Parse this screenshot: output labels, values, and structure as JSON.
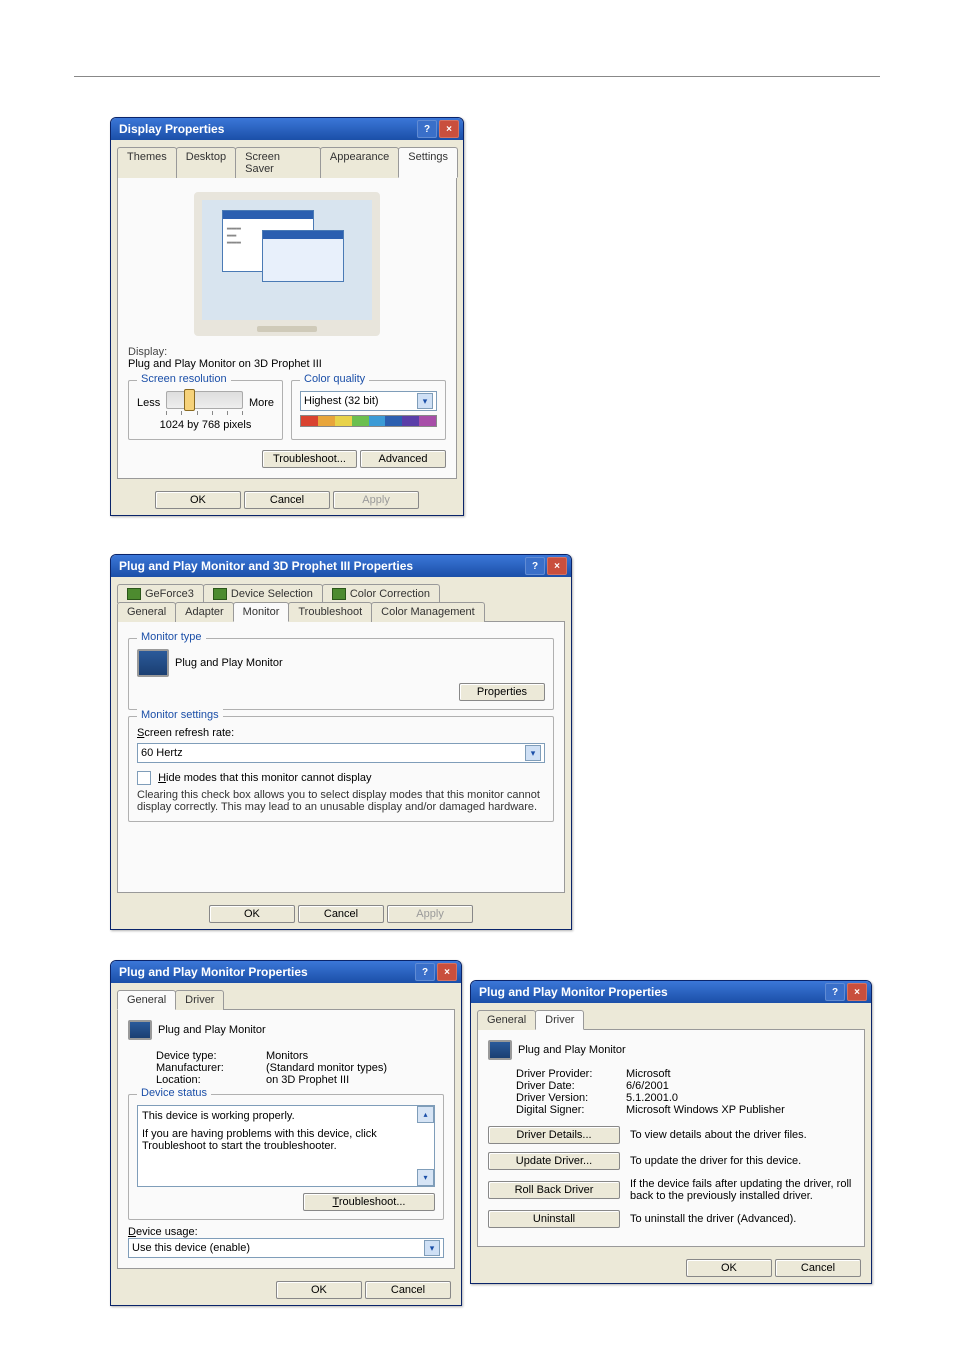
{
  "colors": {
    "titlebar_from": "#3b77d8",
    "titlebar_to": "#1b4fa8",
    "face": "#ece9d8",
    "border": "#7f9db9",
    "link": "#1b4fa8"
  },
  "rainbow": [
    "#d94330",
    "#e8a53b",
    "#e8d24a",
    "#6bbf4f",
    "#3b9bd6",
    "#2b5fb0",
    "#5a3ea8",
    "#a74ea8"
  ],
  "dlg1": {
    "title": "Display Properties",
    "tabs": [
      "Themes",
      "Desktop",
      "Screen Saver",
      "Appearance",
      "Settings"
    ],
    "active_tab": "Settings",
    "display_label": "Display:",
    "display_value": "Plug and Play Monitor on 3D Prophet III",
    "res_group": "Screen resolution",
    "res_less": "Less",
    "res_more": "More",
    "res_value": "1024 by 768 pixels",
    "cq_group": "Color quality",
    "cq_value": "Highest (32 bit)",
    "btn_ts": "Troubleshoot...",
    "btn_adv": "Advanced",
    "ok": "OK",
    "cancel": "Cancel",
    "apply": "Apply"
  },
  "dlg2": {
    "title": "Plug and Play Monitor and 3D Prophet III Properties",
    "tabs_top": [
      "GeForce3",
      "Device Selection",
      "Color Correction"
    ],
    "tabs_bot": [
      "General",
      "Adapter",
      "Monitor",
      "Troubleshoot",
      "Color Management"
    ],
    "active_tab": "Monitor",
    "mt_group": "Monitor type",
    "mt_name": "Plug and Play Monitor",
    "mt_props": "Properties",
    "ms_group": "Monitor settings",
    "refresh_label": "Screen refresh rate:",
    "refresh_value": "60 Hertz",
    "hide_label": "Hide modes that this monitor cannot display",
    "hide_desc": "Clearing this check box allows you to select display modes that this monitor cannot display correctly. This may lead to an unusable display and/or damaged hardware.",
    "ok": "OK",
    "cancel": "Cancel",
    "apply": "Apply"
  },
  "dlg3": {
    "title": "Plug and Play Monitor Properties",
    "tabs": [
      "General",
      "Driver"
    ],
    "active_tab": "General",
    "name": "Plug and Play Monitor",
    "rows": [
      {
        "k": "Device type:",
        "v": "Monitors"
      },
      {
        "k": "Manufacturer:",
        "v": "(Standard monitor types)"
      },
      {
        "k": "Location:",
        "v": "on 3D Prophet III"
      }
    ],
    "ds_group": "Device status",
    "ds_line1": "This device is working properly.",
    "ds_line2": "If you are having problems with this device, click Troubleshoot to start the troubleshooter.",
    "btn_ts": "Troubleshoot...",
    "usage_label": "Device usage:",
    "usage_value": "Use this device (enable)",
    "ok": "OK",
    "cancel": "Cancel"
  },
  "dlg4": {
    "title": "Plug and Play Monitor Properties",
    "tabs": [
      "General",
      "Driver"
    ],
    "active_tab": "Driver",
    "name": "Plug and Play Monitor",
    "rows": [
      {
        "k": "Driver Provider:",
        "v": "Microsoft"
      },
      {
        "k": "Driver Date:",
        "v": "6/6/2001"
      },
      {
        "k": "Driver Version:",
        "v": "5.1.2001.0"
      },
      {
        "k": "Digital Signer:",
        "v": "Microsoft Windows XP Publisher"
      }
    ],
    "buttons": [
      {
        "label": "Driver Details...",
        "desc": "To view details about the driver files."
      },
      {
        "label": "Update Driver...",
        "desc": "To update the driver for this device."
      },
      {
        "label": "Roll Back Driver",
        "desc": "If the device fails after updating the driver, roll back to the previously installed driver."
      },
      {
        "label": "Uninstall",
        "desc": "To uninstall the driver (Advanced)."
      }
    ],
    "ok": "OK",
    "cancel": "Cancel"
  }
}
